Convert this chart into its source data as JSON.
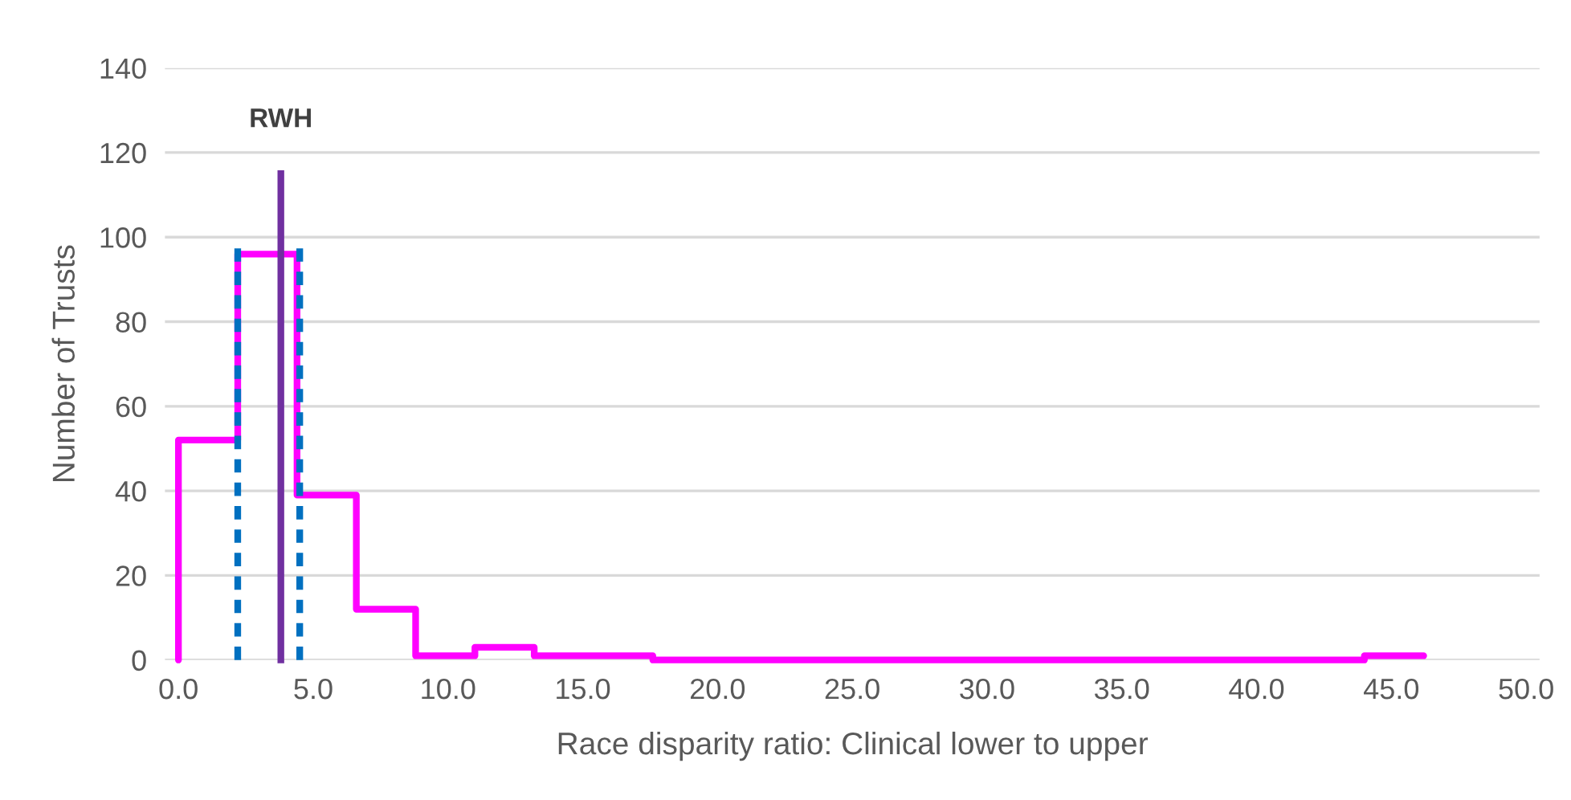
{
  "chart_data": {
    "type": "histogram",
    "xlabel": "Race disparity ratio: Clinical lower to upper",
    "ylabel": "Number of Trusts",
    "bins": [
      0,
      2.2,
      4.4,
      6.6,
      8.8,
      11.0,
      13.2,
      15.4,
      17.6,
      19.8,
      22.0,
      24.2,
      26.4,
      28.6,
      30.8,
      33.0,
      35.2,
      37.4,
      39.6,
      41.8,
      44.0,
      46.2
    ],
    "values": [
      52,
      96,
      39,
      12,
      1,
      3,
      1,
      1,
      0,
      0,
      0,
      0,
      0,
      0,
      0,
      0,
      0,
      0,
      0,
      0,
      1
    ],
    "color": "#ff00ff",
    "series": [
      {
        "type": "line",
        "x": [
          2.2,
          2.2
        ],
        "values": [
          0,
          98
        ],
        "color": "#0070c0",
        "line_style": "dashed"
      },
      {
        "type": "line",
        "x": [
          4.5,
          4.5
        ],
        "values": [
          0,
          98
        ],
        "color": "#0070c0",
        "line_style": "dashed"
      },
      {
        "type": "line",
        "x": [
          3.8,
          3.8
        ],
        "values": [
          0,
          115
        ],
        "color": "#7030a0",
        "line_style": "solid"
      }
    ],
    "annotations": [
      {
        "text": "RWH",
        "x": 3.8,
        "y": 115
      }
    ],
    "xlim": [
      -0.5,
      50.5
    ],
    "ylim": [
      0,
      140
    ],
    "xticks": [
      {
        "value": 0,
        "label": "0.0"
      },
      {
        "value": 5,
        "label": "5.0"
      },
      {
        "value": 10,
        "label": "10.0"
      },
      {
        "value": 15,
        "label": "15.0"
      },
      {
        "value": 20,
        "label": "20.0"
      },
      {
        "value": 25,
        "label": "25.0"
      },
      {
        "value": 30,
        "label": "30.0"
      },
      {
        "value": 35,
        "label": "35.0"
      },
      {
        "value": 40,
        "label": "40.0"
      },
      {
        "value": 45,
        "label": "45.0"
      },
      {
        "value": 50,
        "label": "50.0"
      }
    ],
    "yticks": [
      0,
      20,
      40,
      60,
      80,
      100,
      120,
      140
    ],
    "grid": "y",
    "legend": false
  }
}
